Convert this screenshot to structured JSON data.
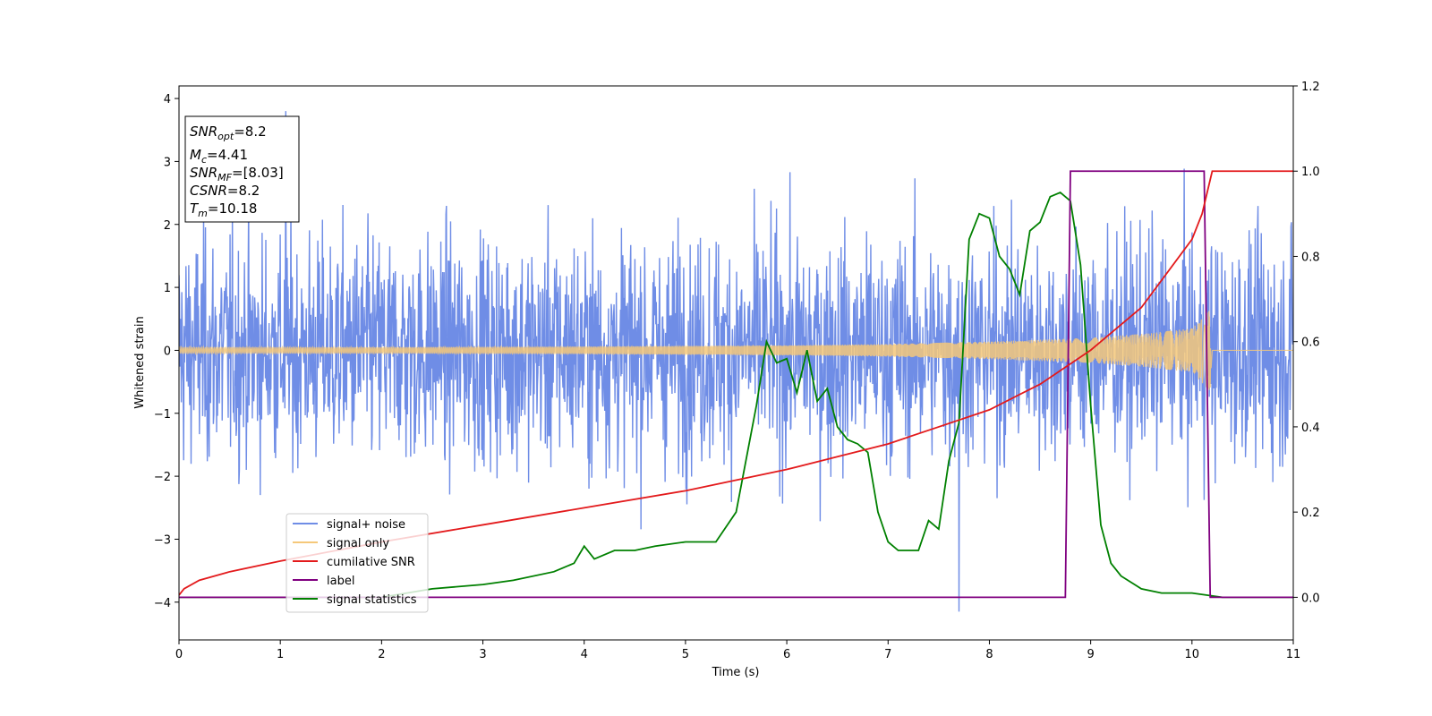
{
  "chart_data": {
    "type": "line",
    "title": "",
    "xlabel": "Time (s)",
    "ylabel": "Whitened strain",
    "y2label": "",
    "xlim": [
      0,
      11
    ],
    "ylim": [
      -4.6,
      4.2
    ],
    "y2lim": [
      -0.1,
      1.2
    ],
    "xticks": [
      "0",
      "1",
      "2",
      "3",
      "4",
      "5",
      "6",
      "7",
      "8",
      "9",
      "10",
      "11"
    ],
    "yticks": [
      "−4",
      "−3",
      "−2",
      "−1",
      "0",
      "1",
      "2",
      "3",
      "4"
    ],
    "y2ticks": [
      "0.0",
      "0.2",
      "0.4",
      "0.6",
      "0.8",
      "1.0",
      "1.2"
    ],
    "grid": false,
    "legend_position": "lower-left",
    "info_box": {
      "lines": [
        {
          "main": "SNR",
          "sub": "opt",
          "rest": "=8.2"
        },
        {
          "main": "M",
          "sub": "c",
          "rest": "=4.41"
        },
        {
          "main": "SNR",
          "sub": "MF",
          "rest": "=[8.03]"
        },
        {
          "main": "CSNR",
          "sub": "",
          "rest": "=8.2"
        },
        {
          "main": "T",
          "sub": "m",
          "rest": "=10.18"
        }
      ]
    },
    "series": [
      {
        "name": "signal+ noise",
        "color": "#6f8de6",
        "axis": "left",
        "kind": "noise",
        "std": 0.9,
        "x_range": [
          0,
          11
        ],
        "y_range_observed": [
          -4.15,
          3.8
        ]
      },
      {
        "name": "signal only",
        "color": "#f5c87a",
        "axis": "left",
        "kind": "chirp",
        "amplitude_envelope": [
          [
            0,
            0.05
          ],
          [
            2,
            0.05
          ],
          [
            4,
            0.06
          ],
          [
            6,
            0.08
          ],
          [
            7,
            0.1
          ],
          [
            8,
            0.14
          ],
          [
            9,
            0.2
          ],
          [
            9.5,
            0.26
          ],
          [
            10,
            0.35
          ],
          [
            10.18,
            0.65
          ],
          [
            10.2,
            0.0
          ],
          [
            11,
            0.0
          ]
        ]
      },
      {
        "name": "cumilative SNR",
        "color": "#e31a1c",
        "axis": "right",
        "x": [
          0,
          0.05,
          0.2,
          0.5,
          1,
          2,
          3,
          4,
          5,
          6,
          7,
          7.5,
          8,
          8.5,
          9,
          9.5,
          10,
          10.1,
          10.18,
          10.2,
          11
        ],
        "values": [
          0.005,
          0.02,
          0.04,
          0.06,
          0.085,
          0.13,
          0.17,
          0.21,
          0.25,
          0.3,
          0.36,
          0.4,
          0.44,
          0.5,
          0.58,
          0.68,
          0.84,
          0.9,
          0.98,
          1.0,
          1.0
        ]
      },
      {
        "name": "label",
        "color": "#800080",
        "axis": "right",
        "x": [
          0,
          8.75,
          8.8,
          10.12,
          10.18,
          11
        ],
        "values": [
          0.0,
          0.0,
          1.0,
          1.0,
          0.0,
          0.0
        ]
      },
      {
        "name": "signal statistics",
        "color": "#008000",
        "axis": "right",
        "x": [
          0,
          1,
          2,
          2.5,
          3,
          3.3,
          3.7,
          3.9,
          4.0,
          4.1,
          4.3,
          4.5,
          4.7,
          5.0,
          5.3,
          5.5,
          5.7,
          5.8,
          5.9,
          6.0,
          6.1,
          6.2,
          6.3,
          6.4,
          6.5,
          6.6,
          6.7,
          6.8,
          6.9,
          7.0,
          7.1,
          7.3,
          7.4,
          7.5,
          7.6,
          7.7,
          7.8,
          7.9,
          8.0,
          8.1,
          8.2,
          8.3,
          8.4,
          8.5,
          8.6,
          8.7,
          8.8,
          8.9,
          9.0,
          9.1,
          9.2,
          9.3,
          9.5,
          9.7,
          10.0,
          10.3,
          11.0
        ],
        "values": [
          0.0,
          0.0,
          0.0,
          0.02,
          0.03,
          0.04,
          0.06,
          0.08,
          0.12,
          0.09,
          0.11,
          0.11,
          0.12,
          0.13,
          0.13,
          0.2,
          0.45,
          0.6,
          0.55,
          0.56,
          0.48,
          0.58,
          0.46,
          0.49,
          0.4,
          0.37,
          0.36,
          0.34,
          0.2,
          0.13,
          0.11,
          0.11,
          0.18,
          0.16,
          0.32,
          0.41,
          0.84,
          0.9,
          0.89,
          0.8,
          0.77,
          0.71,
          0.86,
          0.88,
          0.94,
          0.95,
          0.93,
          0.78,
          0.45,
          0.17,
          0.08,
          0.05,
          0.02,
          0.01,
          0.01,
          0.0,
          0.0
        ]
      }
    ]
  }
}
